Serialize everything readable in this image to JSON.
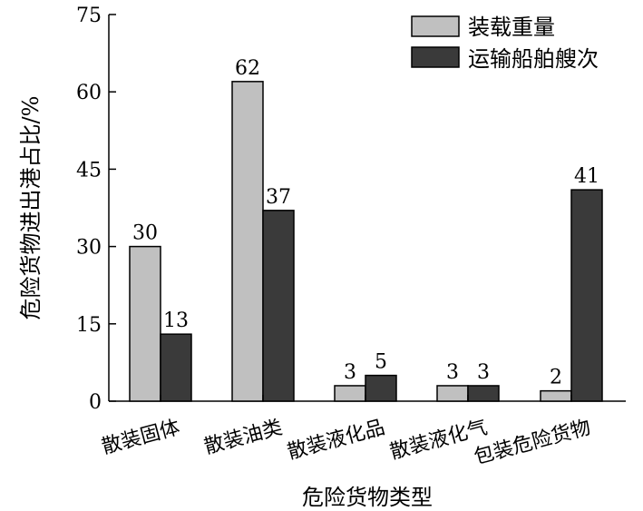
{
  "chart_data": {
    "type": "bar",
    "title": "",
    "xlabel": "危险货物类型",
    "ylabel": "危险货物进出港占比/%",
    "ylim": [
      0,
      75
    ],
    "yticks": [
      0,
      15,
      30,
      45,
      60,
      75
    ],
    "categories": [
      "散装固体",
      "散装油类",
      "散装液化品",
      "散装液化气",
      "包装危险货物"
    ],
    "series": [
      {
        "name": "装载重量",
        "values": [
          30,
          62,
          3,
          3,
          2
        ],
        "color": "#c0c0c0"
      },
      {
        "name": "运输船舶艘次",
        "values": [
          13,
          37,
          5,
          3,
          41
        ],
        "color": "#3a3a3a"
      }
    ],
    "data_labels": true,
    "grid": false,
    "legend_position": "top-right"
  }
}
